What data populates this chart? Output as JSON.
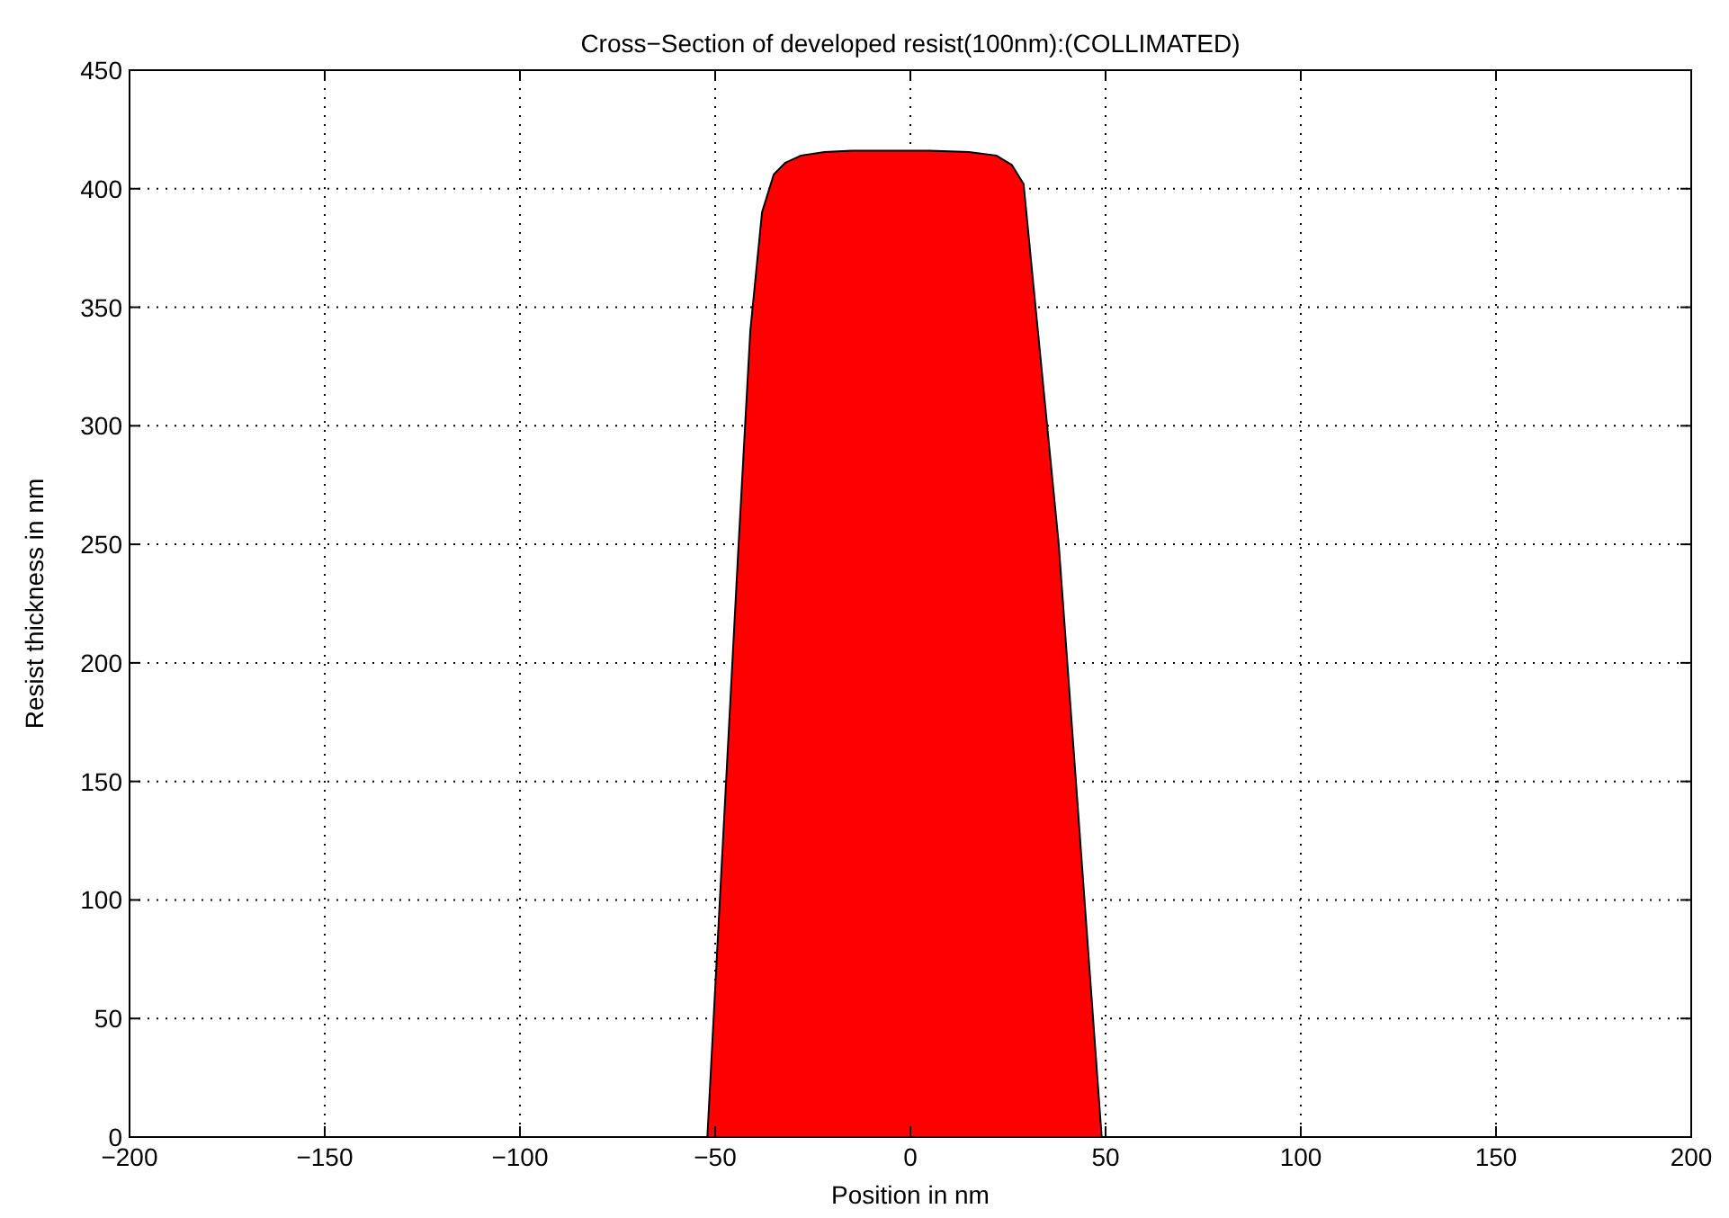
{
  "chart_data": {
    "type": "area",
    "title": "Cross−Section of developed resist(100nm):(COLLIMATED)",
    "xlabel": "Position in nm",
    "ylabel": "Resist thickness in nm",
    "x": [
      -52,
      -44,
      -41,
      -38,
      -35,
      -32,
      -28,
      -22,
      -15,
      -5,
      5,
      15,
      22,
      26,
      29,
      31,
      38,
      49
    ],
    "series": [
      {
        "color": "#ff0000",
        "values": [
          0,
          250,
          340,
          390,
          406,
          411,
          414,
          415.5,
          416,
          416,
          416,
          415.5,
          414,
          410,
          402,
          368,
          250,
          0
        ]
      }
    ],
    "xlim": [
      -200,
      200
    ],
    "xticks": [
      {
        "value": -200,
        "label": "−200"
      },
      {
        "value": -150,
        "label": "−150"
      },
      {
        "value": -100,
        "label": "−100"
      },
      {
        "value": -50,
        "label": "−50"
      },
      0,
      50,
      100,
      150,
      200
    ],
    "ylim": [
      0,
      450
    ],
    "yticks": [
      0,
      50,
      100,
      150,
      200,
      250,
      300,
      350,
      400,
      450
    ],
    "grid": true,
    "line_style": "dotted"
  }
}
